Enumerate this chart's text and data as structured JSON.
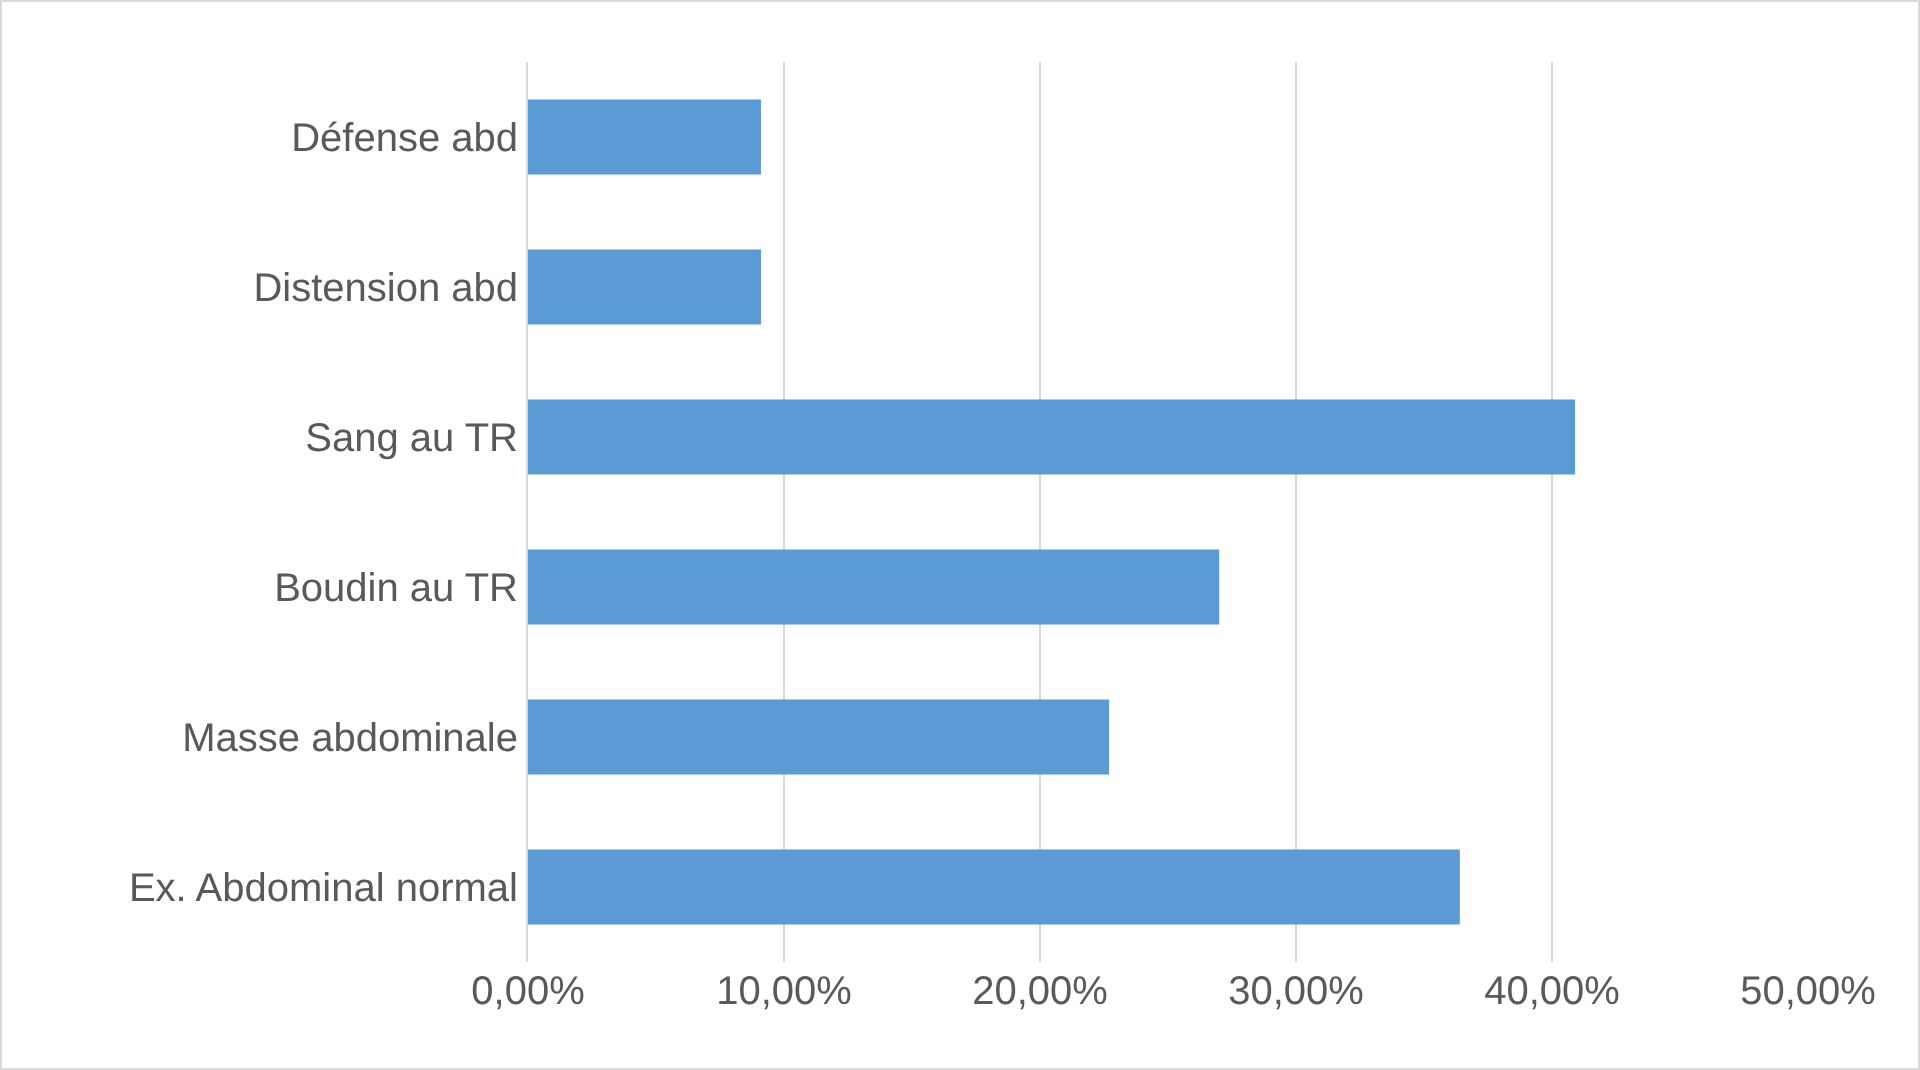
{
  "chart_data": {
    "type": "bar",
    "orientation": "horizontal",
    "categories": [
      "Défense abd",
      "Distension abd",
      "Sang au TR",
      "Boudin au TR",
      "Masse abdominale",
      "Ex. Abdominal normal"
    ],
    "values": [
      9.1,
      9.1,
      40.9,
      27.0,
      22.7,
      36.4
    ],
    "color": "#5b9bd5",
    "xlim": [
      0,
      50
    ],
    "xticks": [
      {
        "value": 0,
        "label": "0,00%"
      },
      {
        "value": 10,
        "label": "10,00%"
      },
      {
        "value": 20,
        "label": "20,00%"
      },
      {
        "value": 30,
        "label": "30,00%"
      },
      {
        "value": 40,
        "label": "40,00%"
      },
      {
        "value": 50,
        "label": "50,00%"
      }
    ],
    "grid": "x"
  }
}
